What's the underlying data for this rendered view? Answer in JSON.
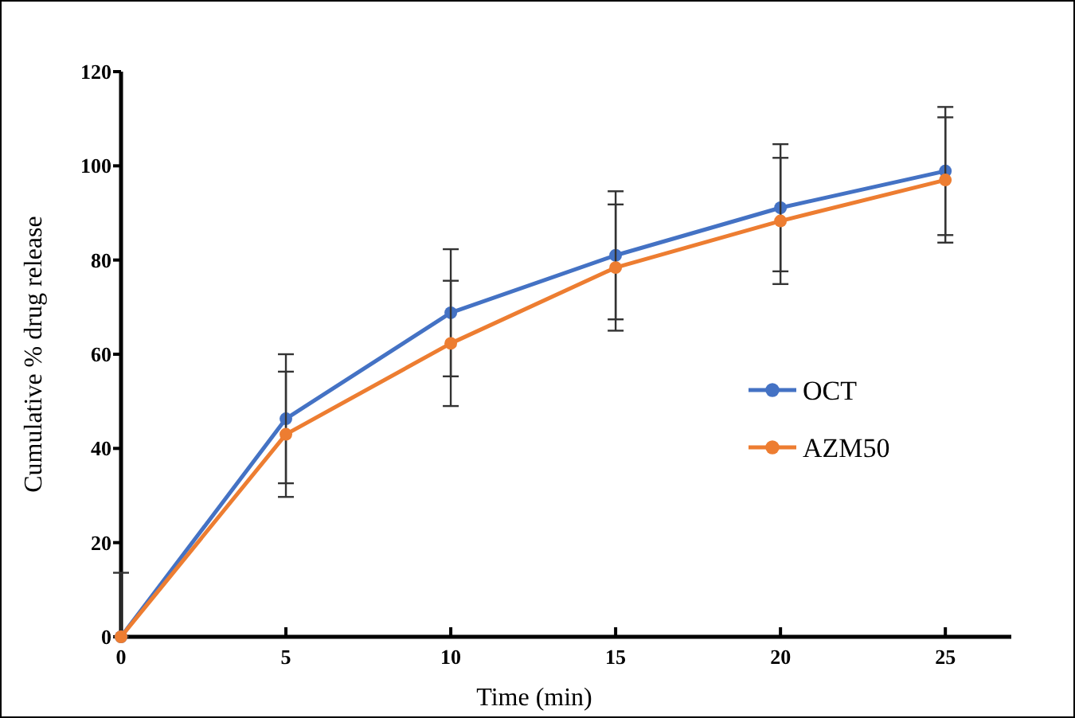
{
  "chart_data": {
    "type": "line",
    "xlabel": "Time (min)",
    "ylabel": "Cumulative % drug release",
    "x": [
      0,
      5,
      10,
      15,
      20,
      25
    ],
    "series": [
      {
        "name": "OCT",
        "color": "#4472c4",
        "values": [
          0,
          46.3,
          68.8,
          81,
          91.1,
          98.9
        ],
        "errors": [
          [
            0,
            13.6
          ],
          13.7,
          13.5,
          13.6,
          13.5,
          13.6
        ]
      },
      {
        "name": "AZM50",
        "color": "#ed7d31",
        "values": [
          0,
          43,
          62.3,
          78.4,
          88.3,
          97
        ],
        "errors": [
          null,
          13.3,
          13.3,
          13.4,
          13.4,
          13.3
        ]
      }
    ],
    "xlim": [
      0,
      27
    ],
    "xticks": [
      0,
      5,
      10,
      15,
      20,
      25
    ],
    "ylim": [
      0,
      120
    ],
    "yticks": [
      0,
      20,
      40,
      60,
      80,
      100,
      120
    ],
    "grid": false,
    "legend": "right",
    "marker": "circle",
    "line_style": "solid"
  }
}
